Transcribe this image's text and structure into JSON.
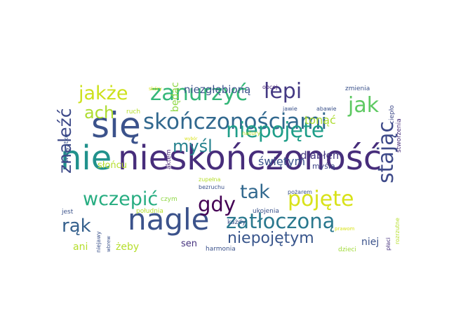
{
  "words": [
    {
      "text": "nieskończoność",
      "color": "#472d7b"
    },
    {
      "text": "się",
      "color": "#3b528b"
    },
    {
      "text": "nie",
      "color": "#21918c"
    },
    {
      "text": "nagle",
      "color": "#3b528b"
    },
    {
      "text": "skończonościami",
      "color": "#31688e"
    },
    {
      "text": "zanurzyć",
      "color": "#35b779"
    },
    {
      "text": "niepojęte",
      "color": "#1f9e89"
    },
    {
      "text": "pojęte",
      "color": "#d8e219"
    },
    {
      "text": "zatłoczoną",
      "color": "#2a788e"
    },
    {
      "text": "wczepić",
      "color": "#27ad81"
    },
    {
      "text": "jakże",
      "color": "#cde11d"
    },
    {
      "text": "stając",
      "color": "#3e4a89"
    },
    {
      "text": "jak",
      "color": "#5ec962"
    },
    {
      "text": "lepi",
      "color": "#443983"
    },
    {
      "text": "tak",
      "color": "#31688e"
    },
    {
      "text": "gdy",
      "color": "#440154"
    },
    {
      "text": "myśl",
      "color": "#26828e"
    },
    {
      "text": "rąk",
      "color": "#35608d"
    },
    {
      "text": "ach",
      "color": "#addc30"
    },
    {
      "text": "znaleźć",
      "color": "#3e4a89"
    },
    {
      "text": "niepojętym",
      "color": "#39568c"
    },
    {
      "text": "niezgłębioną",
      "color": "#3b528b"
    },
    {
      "text": "tonąć",
      "color": "#addc30"
    },
    {
      "text": "świętym",
      "color": "#3b528b"
    },
    {
      "text": "diabłem",
      "color": "#453781"
    },
    {
      "text": "będąc",
      "color": "#8fd744"
    },
    {
      "text": "słońcu",
      "color": "#b5de2b"
    },
    {
      "text": "myślą",
      "color": "#404688"
    },
    {
      "text": "żeby",
      "color": "#b5de2b"
    },
    {
      "text": "sen",
      "color": "#46327e"
    },
    {
      "text": "niej",
      "color": "#3b528b"
    },
    {
      "text": "ani",
      "color": "#b5de2b"
    },
    {
      "text": "ciepło",
      "color": "#3e4a89"
    },
    {
      "text": "stworzenia",
      "color": "#472d7b"
    },
    {
      "text": "wszystko",
      "color": "#3b528b"
    },
    {
      "text": "aktem",
      "color": "#482677"
    },
    {
      "text": "jest",
      "color": "#3b528b"
    },
    {
      "text": "czym",
      "color": "#8fd744"
    },
    {
      "text": "południa",
      "color": "#b5de2b"
    },
    {
      "text": "ukojenia",
      "color": "#3b528b"
    },
    {
      "text": "każdy",
      "color": "#3b528b"
    },
    {
      "text": "harmonia",
      "color": "#3b528b"
    },
    {
      "text": "dzieci",
      "color": "#a0da39"
    },
    {
      "text": "płaci",
      "color": "#46327e"
    },
    {
      "text": "rozrzutne",
      "color": "#b5de2b"
    },
    {
      "text": "prawom",
      "color": "#d8e219"
    },
    {
      "text": "pożarem",
      "color": "#3b528b"
    },
    {
      "text": "zupełna",
      "color": "#b5de2b"
    },
    {
      "text": "bezruchu",
      "color": "#3b528b"
    },
    {
      "text": "natury",
      "color": "#b5de2b"
    },
    {
      "text": "jawie",
      "color": "#3b528b"
    },
    {
      "text": "abawie",
      "color": "#3b528b"
    },
    {
      "text": "zmienia",
      "color": "#3b528b"
    },
    {
      "text": "obcej",
      "color": "#482677"
    },
    {
      "text": "skóry",
      "color": "#d8e219"
    },
    {
      "text": "ruch",
      "color": "#b5de2b"
    },
    {
      "text": "wybór",
      "color": "#d8e219"
    },
    {
      "text": "wbrew",
      "color": "#3b528b"
    },
    {
      "text": "niejawy",
      "color": "#3b528b"
    }
  ]
}
